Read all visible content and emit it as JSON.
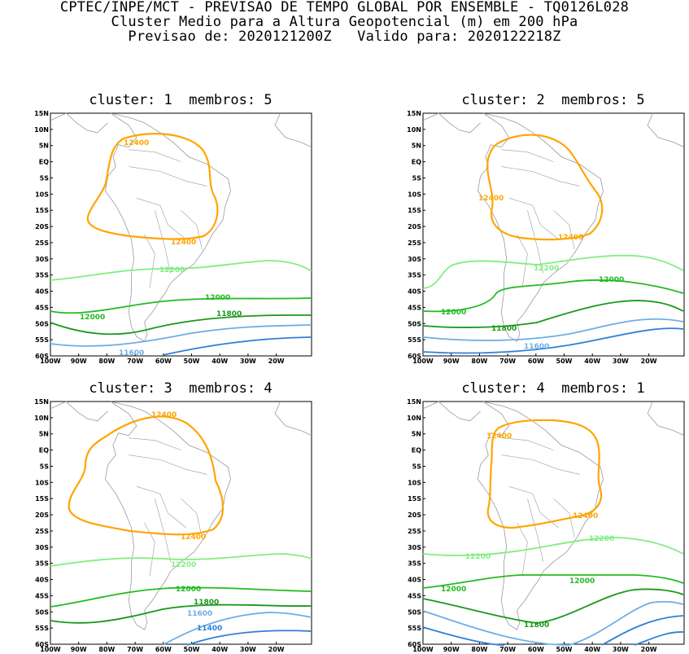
{
  "header": {
    "line1": "CPTEC/INPE/MCT - PREVISAO DE TEMPO GLOBAL POR ENSEMBLE - TQ0126L028",
    "line2": "Cluster Medio para a Altura Geopotencial (m) em 200 hPa",
    "line3": "Previsao de: 2020121200Z   Valido para: 2020122218Z"
  },
  "axes": {
    "lat_ticks": [
      "15N",
      "10N",
      "5N",
      "EQ",
      "5S",
      "10S",
      "15S",
      "20S",
      "25S",
      "30S",
      "35S",
      "40S",
      "45S",
      "50S",
      "55S",
      "60S"
    ],
    "lon_ticks": [
      "100W",
      "90W",
      "80W",
      "70W",
      "60W",
      "50W",
      "40W",
      "30W",
      "20W"
    ]
  },
  "colors": {
    "c12400": "#ffa500",
    "c12200": "#80ee80",
    "c12000": "#22bb22",
    "c11800": "#1a981a",
    "c11600": "#6eaee6",
    "c11400": "#2f7fd8",
    "coast": "#9a9a9a"
  },
  "panels": [
    {
      "title": "cluster: 1  membros: 5",
      "label_12400_a": "12400",
      "label_12400_b": "12400",
      "label_12200": "12200",
      "label_12000_a": "12000",
      "label_12000_b": "12000",
      "label_11800": "11800",
      "label_11600": "11600"
    },
    {
      "title": "cluster: 2  membros: 5",
      "label_12400_a": "12400",
      "label_12400_b": "12400",
      "label_12200": "12200",
      "label_12000_a": "12000",
      "label_12000_b": "12000",
      "label_11800": "11800",
      "label_11600": "11600"
    },
    {
      "title": "cluster: 3  membros: 4",
      "label_12400_a": "12400",
      "label_12400_b": "12400",
      "label_12200": "12200",
      "label_12000_a": "12000",
      "label_11800": "11800",
      "label_11600": "11600",
      "label_11400": "11400"
    },
    {
      "title": "cluster: 4  membros: 1",
      "label_12400_a": "12400",
      "label_12400_b": "12400",
      "label_12200_a": "12200",
      "label_12200_b": "12200",
      "label_12000_a": "12000",
      "label_12000_b": "12000",
      "label_11800": "11800"
    }
  ]
}
